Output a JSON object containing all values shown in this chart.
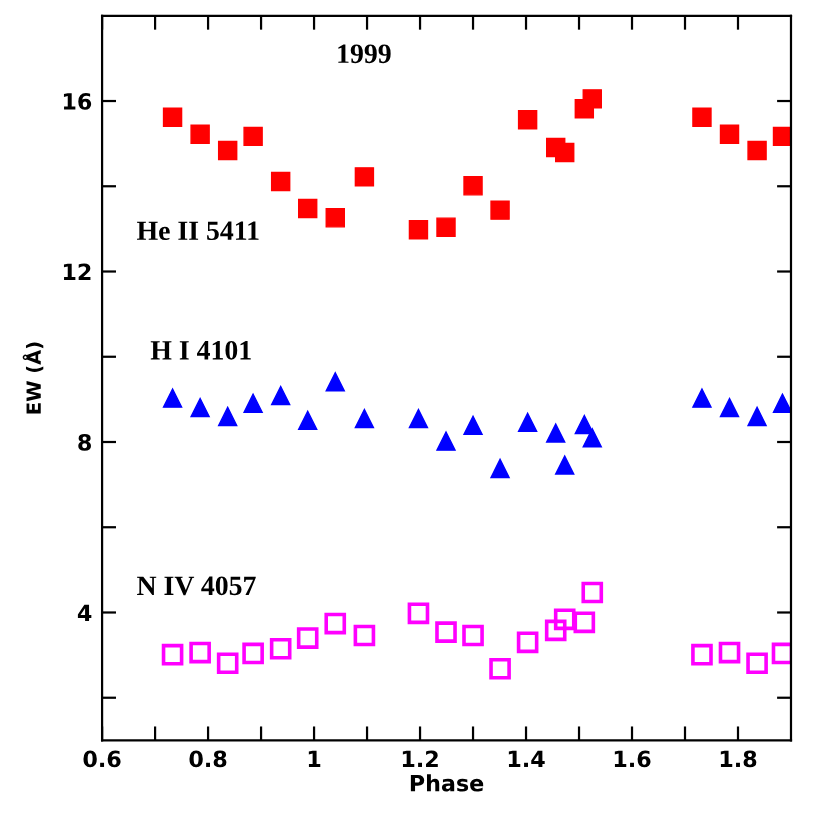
{
  "chart_data": {
    "type": "scatter",
    "title": "1999",
    "xlabel": "Phase",
    "ylabel": "EW (Å)",
    "x": [
      0.733,
      0.785,
      0.837,
      0.885,
      0.937,
      0.988,
      1.04,
      1.095,
      1.197,
      1.249,
      1.3,
      1.351,
      1.403,
      1.456,
      1.473,
      1.51,
      1.525,
      1.732,
      1.784,
      1.836,
      1.884
    ],
    "series": [
      {
        "name": "He II 5411",
        "color": "#ff0000",
        "marker": "square",
        "values": [
          15.62,
          15.22,
          14.84,
          15.17,
          14.11,
          13.48,
          13.26,
          14.22,
          12.98,
          13.04,
          14.01,
          13.44,
          15.56,
          14.91,
          14.79,
          15.82,
          16.05,
          15.62,
          15.22,
          14.84,
          15.17
        ]
      },
      {
        "name": "H I 4101",
        "color": "#0000ff",
        "marker": "triangle",
        "values": [
          9.03,
          8.81,
          8.6,
          8.91,
          9.09,
          8.51,
          9.41,
          8.55,
          8.55,
          8.02,
          8.39,
          7.38,
          8.46,
          8.21,
          7.46,
          8.41,
          8.1,
          9.03,
          8.81,
          8.6,
          8.91
        ]
      },
      {
        "name": "N IV 4057",
        "color": "#ff00ff",
        "marker": "square",
        "values": [
          3.01,
          3.06,
          2.81,
          3.04,
          3.15,
          3.4,
          3.74,
          3.46,
          3.98,
          3.54,
          3.46,
          2.68,
          3.3,
          3.58,
          3.84,
          3.77,
          4.47,
          3.01,
          3.06,
          2.81,
          3.04
        ]
      }
    ],
    "xlim": [
      0.6,
      1.9
    ],
    "xticks": [
      0.6,
      {
        "value": 0.7,
        "label": null
      },
      0.8,
      {
        "value": 0.9,
        "label": null
      },
      1,
      {
        "value": 1.1,
        "label": null
      },
      1.2,
      {
        "value": 1.3,
        "label": null
      },
      1.4,
      {
        "value": 1.5,
        "label": null
      },
      1.6,
      {
        "value": 1.7,
        "label": null
      },
      1.8
    ],
    "ylim": [
      1,
      18
    ],
    "yticks": [
      {
        "value": 2,
        "label": null
      },
      4,
      {
        "value": 6,
        "label": null
      },
      8,
      {
        "value": 10,
        "label": null
      },
      12,
      {
        "value": 14,
        "label": null
      },
      16
    ],
    "grid": false,
    "legend": false
  }
}
